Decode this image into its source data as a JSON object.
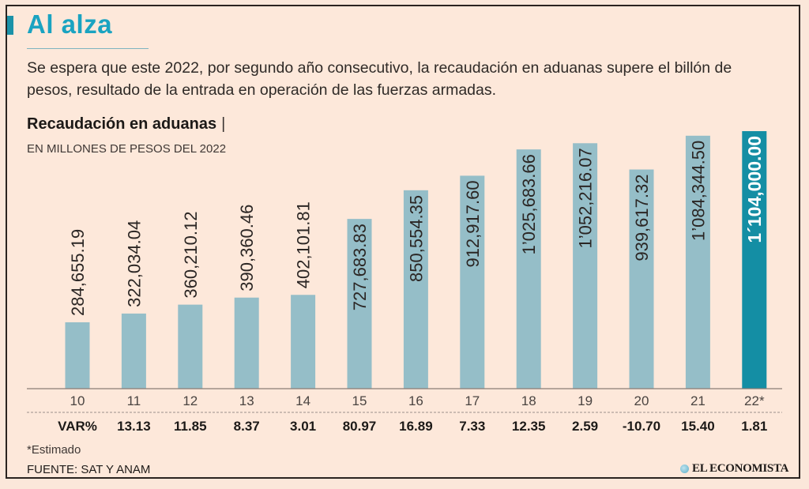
{
  "header": {
    "title": "Al alza",
    "subtitle": "Se espera que este 2022, por segundo año consecutivo, la recaudación en aduanas supere el billón de pesos, resultado de la entrada en operación de las fuerzas armadas."
  },
  "chart_data": {
    "type": "bar",
    "title": "Recaudación en aduanas",
    "title_separator": "|",
    "ylabel": "EN MILLONES DE PESOS DEL 2022",
    "xlabel": "",
    "categories": [
      "10",
      "11",
      "12",
      "13",
      "14",
      "15",
      "16",
      "17",
      "18",
      "19",
      "20",
      "21",
      "22*"
    ],
    "values": [
      284655.19,
      322034.04,
      360210.12,
      390360.46,
      402101.81,
      727683.83,
      850554.35,
      912917.6,
      1025683.66,
      1052216.07,
      939617.32,
      1084344.5,
      1104000.0
    ],
    "value_labels": [
      "284,655.19",
      "322,034.04",
      "360,210.12",
      "390,360.46",
      "402,101.81",
      "727,683.83",
      "850,554.35",
      "912,917.60",
      "1’025,683.66",
      "1’052,216.07",
      "939,617.32",
      "1’084,344.50",
      "1´104,000.00"
    ],
    "highlight_index": 12,
    "ylim": [
      0,
      1104000
    ],
    "grid": false,
    "legend": "none",
    "variation": {
      "label": "VAR%",
      "values": [
        "13.13",
        "11.85",
        "8.37",
        "3.01",
        "80.97",
        "16.89",
        "7.33",
        "12.35",
        "2.59",
        "-10.70",
        "15.40",
        "1.81"
      ]
    },
    "colors": {
      "bar": "#95bec8",
      "highlight": "#148ea4",
      "baseline": "#8a7d76"
    }
  },
  "footer": {
    "note": "*Estimado",
    "source": "FUENTE: SAT Y ANAM",
    "logo": "EL ECONOMISTA"
  }
}
